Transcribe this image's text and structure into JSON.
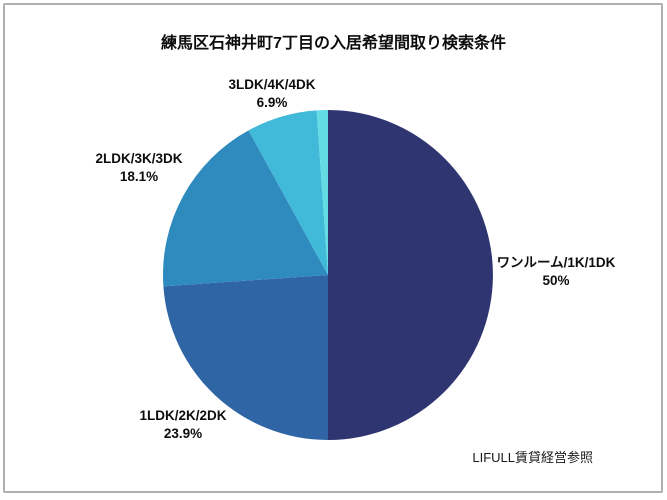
{
  "title": "練馬区石神井町7丁目の入居希望間取り検索条件",
  "source_note": "LIFULL賃貸経営参照",
  "frame": {
    "border_color": "#b0b0b0",
    "background": "#ffffff"
  },
  "chart_data": {
    "type": "pie",
    "title": "練馬区石神井町7丁目の入居希望間取り検索条件",
    "legend_position": "none",
    "start_angle_deg": 0,
    "direction": "clockwise",
    "label_style": "outside, name + percent",
    "slices": [
      {
        "label": "ワンルーム/1K/1DK",
        "value": 50,
        "pct_label": "50%",
        "color": "#2f3571"
      },
      {
        "label": "1LDK/2K/2DK",
        "value": 23.9,
        "pct_label": "23.9%",
        "color": "#2f65a5"
      },
      {
        "label": "2LDK/3K/3DK",
        "value": 18.1,
        "pct_label": "18.1%",
        "color": "#2f8bbd"
      },
      {
        "label": "3LDK/4K/4DK",
        "value": 6.9,
        "pct_label": "6.9%",
        "color": "#41b9d8"
      },
      {
        "label": "",
        "value": 1.1,
        "pct_label": "",
        "color": "#63dce4"
      }
    ],
    "source": "LIFULL賃貸経営参照"
  }
}
